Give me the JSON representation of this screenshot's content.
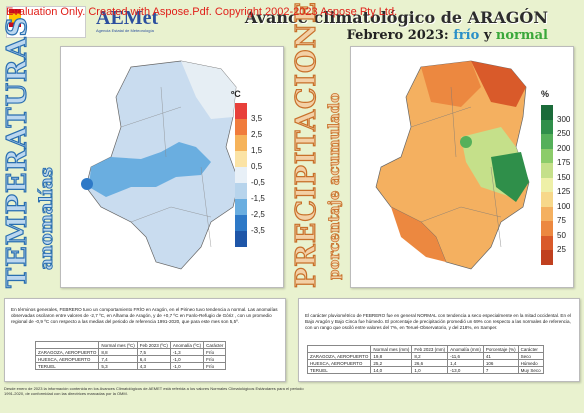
{
  "watermark": "Evaluation Only. Created with Aspose.Pdf. Copyright 2002-2023 Aspose Pty Ltd.",
  "header": {
    "aemet": "AEMet",
    "aemet_sub": "Agencia Estatal de Meteorología",
    "title": "Avance climatológico de ARAGÓN",
    "subtitle_prefix": "Febrero 2023:",
    "subtitle_frio": "frío",
    "subtitle_y": "y",
    "subtitle_normal": "normal"
  },
  "temperatura": {
    "vertical_title": "TEMPERATURAS",
    "vertical_sub": "anomalías",
    "unit": "ºC",
    "legend": [
      "3,5",
      "2,5",
      "1,5",
      "0,5",
      "-0,5",
      "-1,5",
      "-2,5",
      "-3,5"
    ],
    "legend_colors": [
      "#e8403a",
      "#f07c3c",
      "#f6b35a",
      "#fbe3a5",
      "#e8f0f7",
      "#b7d4ec",
      "#6aaee0",
      "#2e79c7",
      "#1e56a8"
    ],
    "text": "En términos generales, FEBRERO tuvo un comportamiento FRÍO en Aragón, en el Pirineo tuvo tendencia a normal. Las anomalías observadas oscilaron entre valores de -2,7 ºC, en Alhama de Aragón, y de +0,7 ºC en Fanlo-Refugio de Góriz , con un promedio regional de -0,9 ºC con respecto a las medias del periodo de referencia 1991-2020, que para este mes son 5,5º.",
    "table": {
      "headers": [
        "",
        "Normal mes (ºC)",
        "Feb 2023 (ºC)",
        "Anomalía (ºC)",
        "Carácter"
      ],
      "rows": [
        [
          "ZARAGOZA, AEROPUERTO",
          "8,8",
          "7,5",
          "-1,3",
          "Frío"
        ],
        [
          "HUESCA, AEROPUERTO",
          "7,4",
          "6,4",
          "-1,0",
          "Frío"
        ],
        [
          "TERUEL",
          "5,3",
          "4,3",
          "-1,0",
          "Frío"
        ]
      ]
    }
  },
  "precipitacion": {
    "vertical_title": "PRECIPITACIONES",
    "vertical_sub": "porcentaje acumulado",
    "unit": "%",
    "legend": [
      "300",
      "250",
      "200",
      "175",
      "150",
      "125",
      "100",
      "75",
      "50",
      "25"
    ],
    "legend_colors": [
      "#1b6b3a",
      "#2f8f4a",
      "#55b05a",
      "#8ccc6a",
      "#c5e08a",
      "#eef0a8",
      "#f7d88a",
      "#f4b060",
      "#ec8840",
      "#d95a2a",
      "#c0401f"
    ],
    "text": "El carácter pluviométrico de FEBRERO fue en general NORMAL con tendencia a seco especialmente en la mitad occidental. En el Bajo Aragón y Bajo Cinca fue húmedo. El porcentaje de precipitación promedió un 69% con respecto a las normales de referencia, con un rango que osciló entre valores del 7%, en Teruel-Observatorio, y del 218%, en Samper.",
    "table": {
      "headers": [
        "",
        "Normal mes (mm)",
        "Feb 2023 (mm)",
        "Anomalía (mm)",
        "Porcentaje (%)",
        "Carácter"
      ],
      "rows": [
        [
          "ZARAGOZA, AEROPUERTO",
          "19,8",
          "8,2",
          "-11,6",
          "41",
          "Seco"
        ],
        [
          "HUESCA, AEROPUERTO",
          "25,2",
          "26,6",
          "1,4",
          "106",
          "Húmedo"
        ],
        [
          "TERUEL",
          "14,0",
          "1,0",
          "-13,0",
          "7",
          "Muy Seco"
        ]
      ]
    }
  },
  "footer": "Desde enero de 2023 la información contenida en los Avances Climatológicos de AEMET está referida a los valores Normales Climatológicos Estándares para el periodo 1991-2020, de conformidad con las directrices marcadas por la OMM."
}
